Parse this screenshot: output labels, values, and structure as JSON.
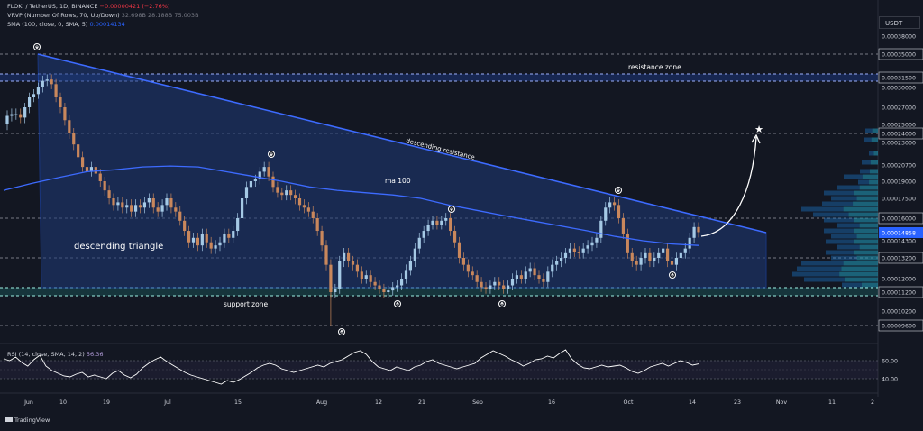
{
  "header": {
    "symbol_line": "FLOKI / TetherUS, 1D, BINANCE",
    "change": "−0.00000421 (−2.76%)",
    "vrvp_line": "VRVP (Number Of Rows, 70, Up/Down)",
    "vrvp_values": "32.698B  28.188B  75.003B",
    "sma_line": "SMA (100, close, 0, SMA, 5)",
    "sma_value": "0.00014134"
  },
  "rsi": {
    "label": "RSI (14, close, SMA, 14, 2)",
    "value": "56.36",
    "levels": [
      "60.00",
      "40.00"
    ]
  },
  "brand": "TradingView",
  "currency_button": "USDT",
  "chart_data": {
    "type": "candlestick",
    "title": "FLOKI / TetherUS, 1D, BINANCE",
    "y_ticks": [
      "0.00038000",
      "0.00035000",
      "0.00031500",
      "0.00030000",
      "0.00027000",
      "0.00025000",
      "0.00024000",
      "0.00023000",
      "0.00020700",
      "0.00019000",
      "0.00017500",
      "0.00016000",
      "0.00014858",
      "0.00014300",
      "0.00013200",
      "0.00012000",
      "0.00011200",
      "0.00010200",
      "0.00009600"
    ],
    "current_price": "0.00014858",
    "x_ticks": [
      "Jun",
      "10",
      "19",
      "Jul",
      "15",
      "Aug",
      "12",
      "21",
      "Sep",
      "16",
      "Oct",
      "14",
      "23",
      "Nov",
      "11",
      "2"
    ],
    "annotations": {
      "resistance_zone": "resistance zone",
      "support_zone": "support zone",
      "descending_resistance": "descending resistance",
      "ma100": "ma 100",
      "descending_triangle": "descending triangle"
    },
    "closes": [
      0.00026,
      0.000262,
      0.000262,
      0.000258,
      0.00027,
      0.000285,
      0.00029,
      0.0003,
      0.00031,
      0.000312,
      0.000305,
      0.000285,
      0.00027,
      0.000255,
      0.00024,
      0.000228,
      0.000215,
      0.000205,
      0.0002,
      0.000205,
      0.000198,
      0.00019,
      0.000182,
      0.000175,
      0.00017,
      0.000172,
      0.000168,
      0.00017,
      0.000165,
      0.00017,
      0.000168,
      0.000172,
      0.000175,
      0.000168,
      0.000165,
      0.00017,
      0.000175,
      0.000168,
      0.000165,
      0.000158,
      0.00015,
      0.000142,
      0.000145,
      0.00014,
      0.000148,
      0.000142,
      0.000138,
      0.00014,
      0.000142,
      0.000148,
      0.000145,
      0.00015,
      0.00016,
      0.000175,
      0.000185,
      0.00019,
      0.000192,
      0.0002,
      0.000205,
      0.000195,
      0.000185,
      0.00018,
      0.000178,
      0.000182,
      0.000178,
      0.000175,
      0.00017,
      0.000168,
      0.000165,
      0.00016,
      0.00015,
      0.00014,
      0.000128,
      0.000112,
      0.000114,
      0.00013,
      0.000135,
      0.00013,
      0.000128,
      0.000124,
      0.00012,
      0.000122,
      0.000118,
      0.000116,
      0.000114,
      0.000112,
      0.000113,
      0.000115,
      0.000116,
      0.00012,
      0.000125,
      0.00013,
      0.000138,
      0.000145,
      0.00015,
      0.000155,
      0.000158,
      0.000155,
      0.000158,
      0.00016,
      0.00015,
      0.000142,
      0.000132,
      0.000128,
      0.000124,
      0.000122,
      0.000118,
      0.000115,
      0.000114,
      0.000116,
      0.000118,
      0.000116,
      0.000114,
      0.000116,
      0.00012,
      0.000122,
      0.00012,
      0.000124,
      0.000126,
      0.000122,
      0.00012,
      0.000118,
      0.000124,
      0.000128,
      0.00013,
      0.000132,
      0.000135,
      0.000138,
      0.000136,
      0.000135,
      0.000138,
      0.00014,
      0.000142,
      0.000145,
      0.000158,
      0.000168,
      0.000172,
      0.00017,
      0.00016,
      0.000148,
      0.000135,
      0.00013,
      0.000128,
      0.000132,
      0.000135,
      0.00013,
      0.000132,
      0.000135,
      0.000138,
      0.00013,
      0.000128,
      0.000132,
      0.000135,
      0.000138,
      0.000145,
      0.000153,
      0.000149
    ],
    "ma100": [
      0.000182,
      0.000188,
      0.000194,
      0.0002,
      0.000202,
      0.000205,
      0.000206,
      0.000205,
      0.0002,
      0.000195,
      0.00019,
      0.000185,
      0.000182,
      0.00018,
      0.000178,
      0.000175,
      0.00017,
      0.000166,
      0.000162,
      0.000158,
      0.000154,
      0.00015,
      0.000146,
      0.000143,
      0.000141,
      0.00014
    ],
    "rsi_values": [
      62,
      60,
      64,
      58,
      54,
      61,
      66,
      54,
      49,
      46,
      43,
      42,
      45,
      47,
      42,
      44,
      42,
      40,
      46,
      49,
      44,
      41,
      45,
      52,
      57,
      61,
      64,
      59,
      55,
      51,
      47,
      44,
      42,
      40,
      38,
      36,
      34,
      38,
      36,
      39,
      43,
      47,
      52,
      55,
      57,
      55,
      51,
      49,
      47,
      49,
      51,
      53,
      55,
      53,
      57,
      59,
      61,
      65,
      69,
      71,
      67,
      59,
      53,
      51,
      49,
      53,
      51,
      49,
      53,
      55,
      59,
      61,
      57,
      55,
      53,
      51,
      53,
      55,
      57,
      63,
      67,
      71,
      68,
      65,
      61,
      58,
      54,
      57,
      61,
      62,
      65,
      63,
      68,
      72,
      62,
      56,
      52,
      51,
      53,
      55,
      53,
      54,
      55,
      52,
      48,
      46,
      49,
      53,
      55,
      57,
      54,
      57,
      60,
      58,
      55,
      56.36
    ]
  }
}
